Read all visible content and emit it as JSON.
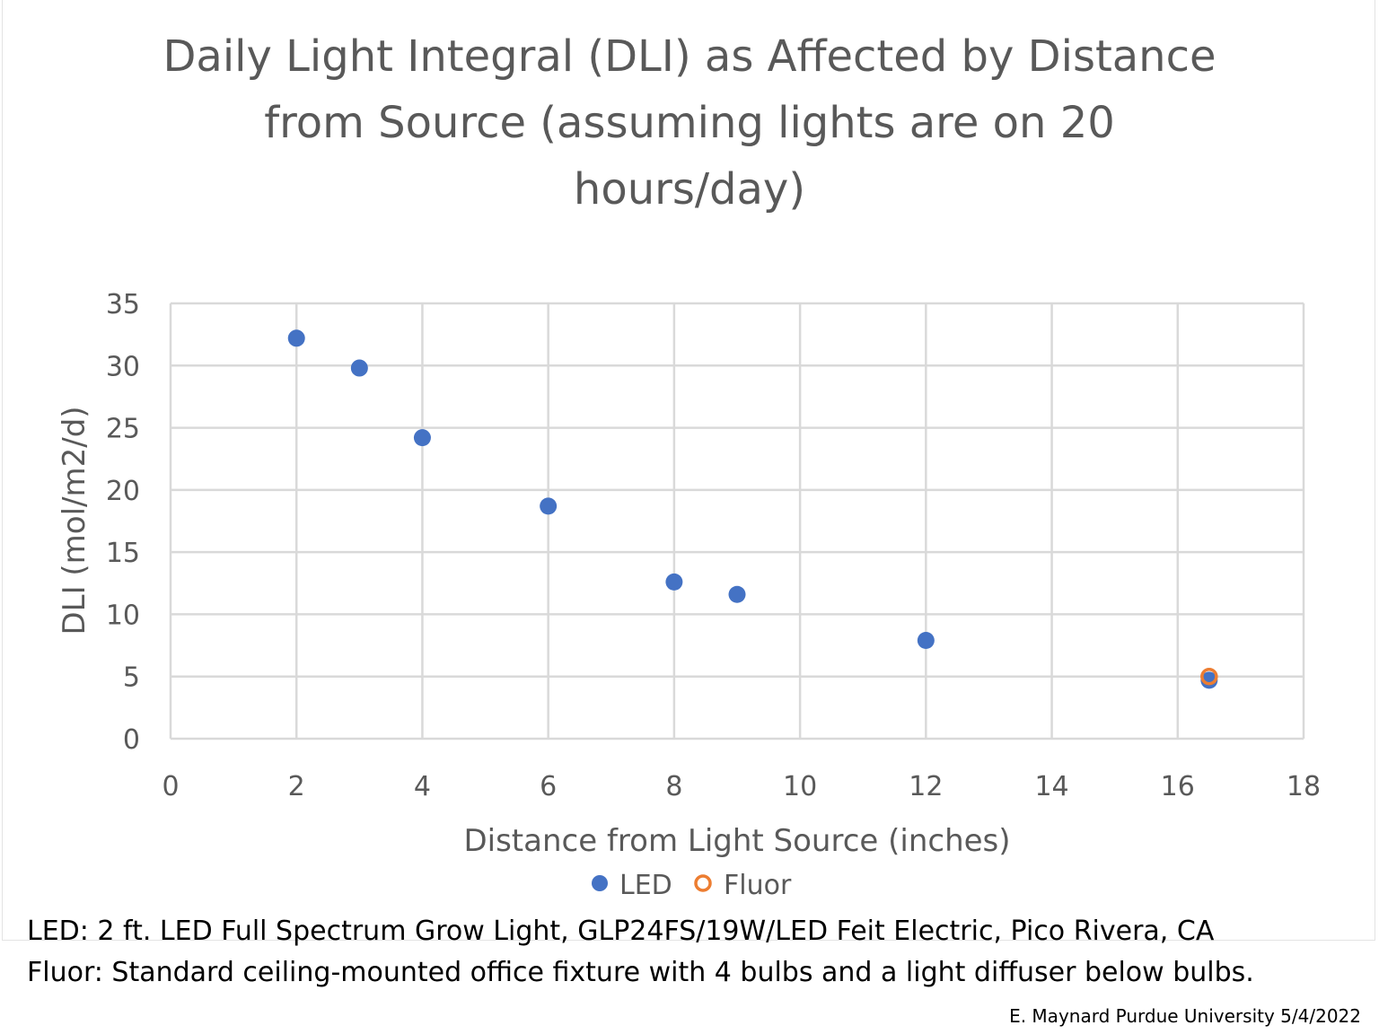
{
  "chart_data": {
    "type": "scatter",
    "title": "Daily Light Integral (DLI) as Affected by Distance from Source (assuming lights are on 20 hours/day)",
    "title_lines": [
      "Daily Light Integral (DLI) as Affected by Distance",
      "from Source (assuming lights are on 20",
      "hours/day)"
    ],
    "xlabel": "Distance from Light Source (inches)",
    "ylabel": "DLI  (mol/m2/d)",
    "xlim": [
      0,
      18
    ],
    "ylim": [
      0,
      35
    ],
    "xticks": [
      0,
      2,
      4,
      6,
      8,
      10,
      12,
      14,
      16,
      18
    ],
    "yticks": [
      0,
      5,
      10,
      15,
      20,
      25,
      30,
      35
    ],
    "grid": true,
    "legend": "bottom",
    "series": [
      {
        "name": "LED",
        "color": "#4472c4",
        "marker": "filled-circle",
        "x": [
          2,
          3,
          4,
          6,
          8,
          9,
          12,
          16.5
        ],
        "y": [
          32.2,
          29.8,
          24.2,
          18.7,
          12.6,
          11.6,
          7.9,
          4.7
        ]
      },
      {
        "name": "Fluor",
        "color": "#ed7d31",
        "marker": "open-circle",
        "x": [
          16.5
        ],
        "y": [
          5.0
        ]
      }
    ]
  },
  "notes": [
    "LED: 2 ft. LED Full Spectrum Grow Light, GLP24FS/19W/LED Feit Electric, Pico Rivera, CA",
    "Fluor: Standard ceiling-mounted office fixture with 4 bulbs and a light diffuser below bulbs."
  ],
  "credit": "E. Maynard Purdue University 5/4/2022"
}
